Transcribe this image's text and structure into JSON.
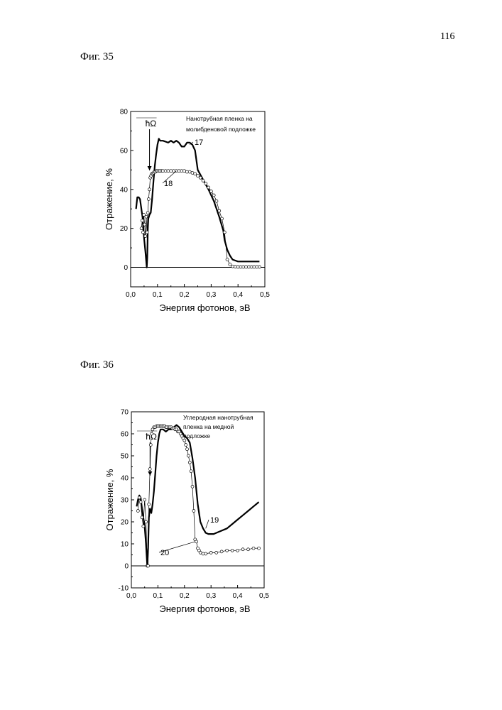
{
  "page_number": "116",
  "figures": [
    {
      "label": "Фиг. 35"
    },
    {
      "label": "Фиг. 36"
    }
  ],
  "chart_data": [
    {
      "type": "line",
      "xlabel": "Энергия фотонов, эВ",
      "ylabel": "Отражение, %",
      "xlim": [
        0,
        0.5
      ],
      "ylim": [
        -10,
        80
      ],
      "xticks": [
        "0,0",
        "0,1",
        "0,2",
        "0,3",
        "0,4",
        "0,5"
      ],
      "yticks": [
        "0",
        "20",
        "40",
        "60",
        "80"
      ],
      "annotation_lines": [
        "Нанотрубная пленка на",
        "молибденовой подложке"
      ],
      "arrow_label": "ћΩ",
      "arrow_x": 0.065,
      "zero_line": true,
      "series": [
        {
          "name": "17",
          "style": "thick-line",
          "x": [
            0.02,
            0.025,
            0.03,
            0.035,
            0.04,
            0.045,
            0.05,
            0.055,
            0.06,
            0.062,
            0.064,
            0.066,
            0.07,
            0.075,
            0.08,
            0.085,
            0.09,
            0.095,
            0.1,
            0.105,
            0.11,
            0.12,
            0.13,
            0.14,
            0.15,
            0.16,
            0.17,
            0.18,
            0.19,
            0.2,
            0.21,
            0.22,
            0.23,
            0.24,
            0.25,
            0.27,
            0.29,
            0.31,
            0.33,
            0.345,
            0.35,
            0.36,
            0.37,
            0.38,
            0.4,
            0.42,
            0.44,
            0.46,
            0.48
          ],
          "y": [
            30,
            36,
            36,
            35,
            30,
            25,
            15,
            8,
            0,
            5,
            20,
            25,
            27,
            28,
            35,
            44,
            52,
            58,
            63,
            66,
            65,
            65,
            64.5,
            64,
            65,
            64,
            65,
            64,
            62,
            62,
            64,
            64,
            63,
            60,
            50,
            45,
            40,
            34,
            26,
            19,
            14,
            9,
            6,
            4,
            3,
            3,
            3,
            3,
            3
          ]
        },
        {
          "name": "18",
          "style": "open-circles",
          "x": [
            0.04,
            0.043,
            0.046,
            0.049,
            0.052,
            0.055,
            0.058,
            0.061,
            0.064,
            0.067,
            0.07,
            0.073,
            0.076,
            0.079,
            0.082,
            0.085,
            0.088,
            0.092,
            0.096,
            0.1,
            0.105,
            0.11,
            0.115,
            0.12,
            0.13,
            0.14,
            0.15,
            0.16,
            0.17,
            0.18,
            0.19,
            0.2,
            0.21,
            0.22,
            0.23,
            0.24,
            0.25,
            0.26,
            0.27,
            0.28,
            0.29,
            0.3,
            0.31,
            0.32,
            0.33,
            0.34,
            0.35,
            0.36,
            0.37,
            0.38,
            0.39,
            0.4,
            0.41,
            0.42,
            0.43,
            0.44,
            0.45,
            0.46,
            0.47,
            0.48
          ],
          "y": [
            20,
            24,
            18,
            27,
            22,
            16,
            26,
            18,
            28,
            35,
            40,
            46,
            47,
            48,
            48,
            48.5,
            49,
            49,
            49.5,
            49.5,
            49.5,
            49.5,
            49.5,
            49.5,
            49.5,
            49.5,
            49.5,
            49.5,
            49.5,
            49.5,
            49.5,
            49.5,
            49,
            49,
            48.5,
            48,
            47,
            46,
            44.5,
            43,
            41,
            39,
            37,
            34,
            29,
            25,
            18,
            4,
            1.5,
            0.5,
            0.3,
            0.2,
            0.2,
            0.2,
            0.2,
            0.2,
            0.2,
            0.2,
            0.2,
            0.2
          ]
        }
      ]
    },
    {
      "type": "line",
      "xlabel": "Энергия фотонов, эВ",
      "ylabel": "Отражение, %",
      "xlim": [
        0,
        0.5
      ],
      "ylim": [
        -10,
        70
      ],
      "xticks": [
        "0,0",
        "0,1",
        "0,2",
        "0,3",
        "0,4",
        "0,5"
      ],
      "yticks": [
        "-10",
        "0",
        "10",
        "20",
        "30",
        "40",
        "50",
        "60",
        "70"
      ],
      "annotation_lines": [
        "Углеродная нанотрубная",
        "пленка на медной",
        "подложке"
      ],
      "arrow_label": "ћΩ",
      "arrow_x": 0.065,
      "zero_line": true,
      "series": [
        {
          "name": "19",
          "style": "thick-line",
          "x": [
            0.02,
            0.025,
            0.03,
            0.035,
            0.04,
            0.045,
            0.05,
            0.055,
            0.06,
            0.063,
            0.066,
            0.07,
            0.075,
            0.08,
            0.085,
            0.09,
            0.095,
            0.1,
            0.105,
            0.11,
            0.12,
            0.13,
            0.14,
            0.15,
            0.16,
            0.17,
            0.18,
            0.19,
            0.2,
            0.21,
            0.22,
            0.23,
            0.24,
            0.25,
            0.26,
            0.27,
            0.28,
            0.29,
            0.3,
            0.31,
            0.32,
            0.34,
            0.36,
            0.38,
            0.4,
            0.42,
            0.44,
            0.46,
            0.48
          ],
          "y": [
            27,
            30,
            32,
            31,
            26,
            22,
            18,
            10,
            0,
            8,
            22,
            26,
            24,
            28,
            34,
            42,
            50,
            56,
            60,
            62,
            62,
            61,
            62,
            62,
            63,
            64,
            63,
            61,
            59,
            58,
            56,
            49,
            40,
            28,
            20,
            17,
            15,
            14.5,
            14.5,
            14.5,
            15,
            16,
            17,
            19,
            21,
            23,
            25,
            27,
            29
          ]
        },
        {
          "name": "20",
          "style": "open-circles",
          "x": [
            0.025,
            0.03,
            0.035,
            0.04,
            0.045,
            0.05,
            0.055,
            0.06,
            0.063,
            0.066,
            0.07,
            0.073,
            0.076,
            0.08,
            0.085,
            0.09,
            0.095,
            0.1,
            0.105,
            0.11,
            0.115,
            0.12,
            0.125,
            0.13,
            0.135,
            0.14,
            0.145,
            0.15,
            0.155,
            0.16,
            0.165,
            0.17,
            0.175,
            0.18,
            0.185,
            0.19,
            0.195,
            0.2,
            0.205,
            0.21,
            0.215,
            0.22,
            0.225,
            0.23,
            0.235,
            0.24,
            0.245,
            0.25,
            0.255,
            0.26,
            0.27,
            0.28,
            0.3,
            0.32,
            0.34,
            0.36,
            0.38,
            0.4,
            0.42,
            0.44,
            0.46,
            0.48
          ],
          "y": [
            25,
            31,
            29,
            22,
            18,
            30,
            20,
            0,
            0,
            28,
            44,
            55,
            60,
            62,
            63,
            63,
            63.5,
            63.5,
            63.5,
            63.5,
            63.5,
            63.5,
            63.5,
            63,
            63,
            63,
            63,
            63,
            62.5,
            62.5,
            62,
            62,
            61,
            61,
            60,
            59,
            58,
            57,
            55,
            53,
            50,
            47,
            43,
            36,
            25,
            12,
            11,
            8,
            7,
            6,
            5.5,
            5.5,
            6,
            6,
            6.5,
            7,
            7,
            7,
            7.5,
            7.5,
            8,
            8
          ]
        }
      ]
    }
  ]
}
